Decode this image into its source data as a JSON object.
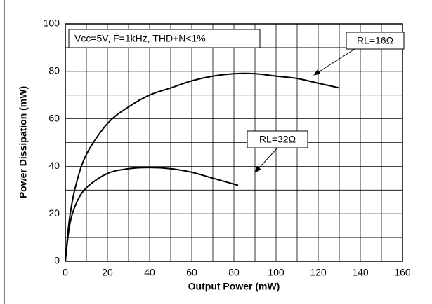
{
  "chart_data": {
    "type": "line",
    "xlabel": "Output Power (mW)",
    "ylabel": "Power Dissipation (mW)",
    "annotations": [
      "Vcc=5V, F=1kHz, THD+N<1%"
    ],
    "xlim": [
      0,
      160
    ],
    "xticks": [
      0,
      20,
      40,
      60,
      80,
      100,
      120,
      140,
      160
    ],
    "ylim": [
      0,
      100
    ],
    "yticks": [
      0,
      20,
      40,
      60,
      80,
      100
    ],
    "grid": true,
    "series": [
      {
        "name": "RL=16Ω",
        "color": "#000000",
        "x": [
          0,
          2,
          5,
          10,
          20,
          30,
          40,
          50,
          60,
          70,
          80,
          90,
          100,
          110,
          120,
          130
        ],
        "values": [
          0,
          18,
          32,
          45,
          58,
          65,
          70,
          73,
          76,
          78,
          79,
          79,
          78,
          77,
          75,
          73
        ]
      },
      {
        "name": "RL=32Ω",
        "color": "#000000",
        "x": [
          0,
          2,
          5,
          10,
          20,
          30,
          40,
          50,
          60,
          70,
          80,
          82
        ],
        "values": [
          0,
          15,
          24,
          31,
          37,
          39,
          39.5,
          39,
          37.5,
          35,
          32.5,
          32
        ]
      }
    ]
  }
}
